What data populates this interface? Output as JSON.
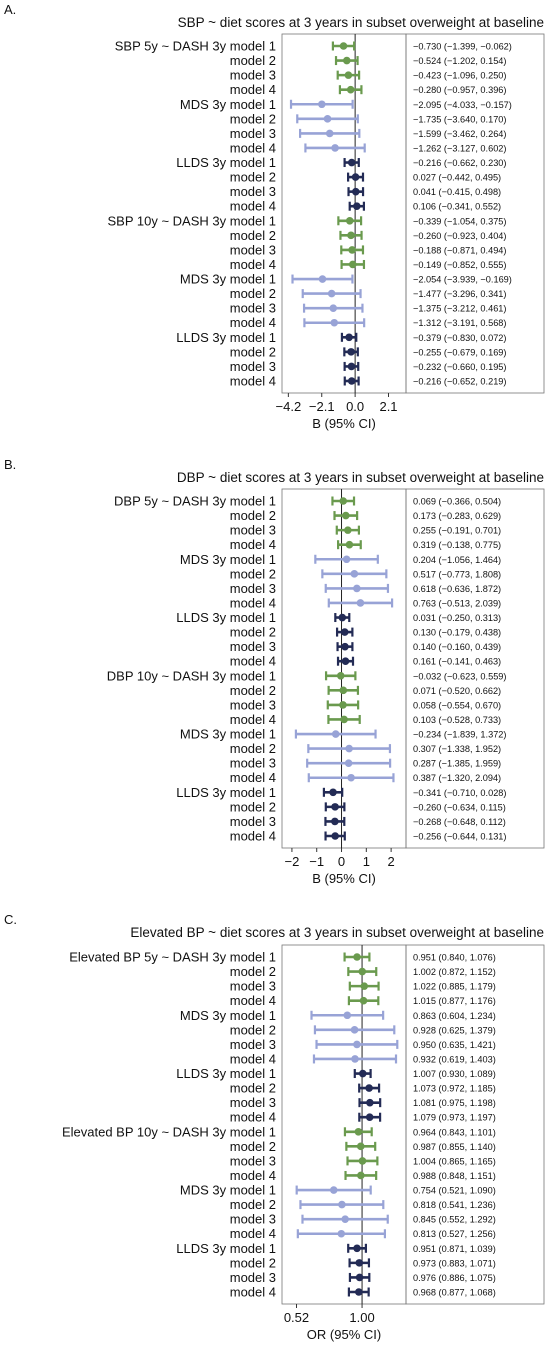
{
  "chart_data": [
    {
      "type": "forest",
      "panel_letter": "A.",
      "title": "SBP ~ diet scores at 3 years in subset overweight at baseline",
      "xlabel": "B (95% CI)",
      "xlim": [
        -4.6,
        3.2
      ],
      "xticks": [
        -4.2,
        -2.1,
        0.0,
        2.1
      ],
      "xtick_labels": [
        "−4.2",
        "−2.1",
        "0.0",
        "2.1"
      ],
      "ref_line": 0,
      "log_scale": false,
      "rows": [
        {
          "label": "SBP 5y ~ DASH 3y model 1",
          "est": -0.73,
          "lo": -1.399,
          "hi": -0.062,
          "ci_text": "−0.730 (−1.399, −0.062)",
          "color": "#6a9a4e"
        },
        {
          "label": "model 2",
          "est": -0.524,
          "lo": -1.202,
          "hi": 0.154,
          "ci_text": "−0.524 (−1.202,  0.154)",
          "color": "#6a9a4e"
        },
        {
          "label": "model 3",
          "est": -0.423,
          "lo": -1.096,
          "hi": 0.25,
          "ci_text": "−0.423 (−1.096,  0.250)",
          "color": "#6a9a4e"
        },
        {
          "label": "model 4",
          "est": -0.28,
          "lo": -0.957,
          "hi": 0.396,
          "ci_text": "−0.280 (−0.957,  0.396)",
          "color": "#6a9a4e"
        },
        {
          "label": "MDS 3y model 1",
          "est": -2.095,
          "lo": -4.033,
          "hi": -0.157,
          "ci_text": "−2.095 (−4.033, −0.157)",
          "color": "#98a3d6"
        },
        {
          "label": "model 2",
          "est": -1.735,
          "lo": -3.64,
          "hi": 0.17,
          "ci_text": "−1.735 (−3.640,  0.170)",
          "color": "#98a3d6"
        },
        {
          "label": "model 3",
          "est": -1.599,
          "lo": -3.462,
          "hi": 0.264,
          "ci_text": "−1.599 (−3.462,  0.264)",
          "color": "#98a3d6"
        },
        {
          "label": "model 4",
          "est": -1.262,
          "lo": -3.127,
          "hi": 0.602,
          "ci_text": "−1.262 (−3.127,  0.602)",
          "color": "#98a3d6"
        },
        {
          "label": "LLDS 3y model 1",
          "est": -0.216,
          "lo": -0.662,
          "hi": 0.23,
          "ci_text": "−0.216 (−0.662,  0.230)",
          "color": "#232b55"
        },
        {
          "label": "model 2",
          "est": 0.027,
          "lo": -0.442,
          "hi": 0.495,
          "ci_text": "0.027 (−0.442,  0.495)",
          "color": "#232b55"
        },
        {
          "label": "model 3",
          "est": 0.041,
          "lo": -0.415,
          "hi": 0.498,
          "ci_text": "0.041 (−0.415,  0.498)",
          "color": "#232b55"
        },
        {
          "label": "model 4",
          "est": 0.106,
          "lo": -0.341,
          "hi": 0.552,
          "ci_text": "0.106 (−0.341,  0.552)",
          "color": "#232b55"
        },
        {
          "label": "SBP 10y ~ DASH 3y model 1",
          "est": -0.339,
          "lo": -1.054,
          "hi": 0.375,
          "ci_text": "−0.339 (−1.054,  0.375)",
          "color": "#6a9a4e"
        },
        {
          "label": "model 2",
          "est": -0.26,
          "lo": -0.923,
          "hi": 0.404,
          "ci_text": "−0.260 (−0.923,  0.404)",
          "color": "#6a9a4e"
        },
        {
          "label": "model 3",
          "est": -0.188,
          "lo": -0.871,
          "hi": 0.494,
          "ci_text": "−0.188 (−0.871,  0.494)",
          "color": "#6a9a4e"
        },
        {
          "label": "model 4",
          "est": -0.149,
          "lo": -0.852,
          "hi": 0.555,
          "ci_text": "−0.149 (−0.852,  0.555)",
          "color": "#6a9a4e"
        },
        {
          "label": "MDS 3y model 1",
          "est": -2.054,
          "lo": -3.939,
          "hi": -0.169,
          "ci_text": "−2.054 (−3.939, −0.169)",
          "color": "#98a3d6"
        },
        {
          "label": "model 2",
          "est": -1.477,
          "lo": -3.296,
          "hi": 0.341,
          "ci_text": "−1.477 (−3.296,  0.341)",
          "color": "#98a3d6"
        },
        {
          "label": "model 3",
          "est": -1.375,
          "lo": -3.212,
          "hi": 0.461,
          "ci_text": "−1.375 (−3.212,  0.461)",
          "color": "#98a3d6"
        },
        {
          "label": "model 4",
          "est": -1.312,
          "lo": -3.191,
          "hi": 0.568,
          "ci_text": "−1.312 (−3.191,  0.568)",
          "color": "#98a3d6"
        },
        {
          "label": "LLDS 3y model 1",
          "est": -0.379,
          "lo": -0.83,
          "hi": 0.072,
          "ci_text": "−0.379 (−0.830,  0.072)",
          "color": "#232b55"
        },
        {
          "label": "model 2",
          "est": -0.255,
          "lo": -0.679,
          "hi": 0.169,
          "ci_text": "−0.255 (−0.679,  0.169)",
          "color": "#232b55"
        },
        {
          "label": "model 3",
          "est": -0.232,
          "lo": -0.66,
          "hi": 0.195,
          "ci_text": "−0.232 (−0.660,  0.195)",
          "color": "#232b55"
        },
        {
          "label": "model 4",
          "est": -0.216,
          "lo": -0.652,
          "hi": 0.219,
          "ci_text": "−0.216 (−0.652,  0.219)",
          "color": "#232b55"
        }
      ]
    },
    {
      "type": "forest",
      "panel_letter": "B.",
      "title": "DBP ~ diet scores at 3 years in subset overweight at baseline",
      "xlabel": "B (95% CI)",
      "xlim": [
        -2.4,
        2.6
      ],
      "xticks": [
        -2,
        -1,
        0,
        1,
        2
      ],
      "xtick_labels": [
        "−2",
        "−1",
        "0",
        "1",
        "2"
      ],
      "ref_line": 0,
      "log_scale": false,
      "rows": [
        {
          "label": "DBP 5y ~ DASH 3y model 1",
          "est": 0.069,
          "lo": -0.366,
          "hi": 0.504,
          "ci_text": "0.069 (−0.366, 0.504)",
          "color": "#6a9a4e"
        },
        {
          "label": "model 2",
          "est": 0.173,
          "lo": -0.283,
          "hi": 0.629,
          "ci_text": "0.173 (−0.283, 0.629)",
          "color": "#6a9a4e"
        },
        {
          "label": "model 3",
          "est": 0.255,
          "lo": -0.191,
          "hi": 0.701,
          "ci_text": "0.255 (−0.191, 0.701)",
          "color": "#6a9a4e"
        },
        {
          "label": "model 4",
          "est": 0.319,
          "lo": -0.138,
          "hi": 0.775,
          "ci_text": "0.319 (−0.138, 0.775)",
          "color": "#6a9a4e"
        },
        {
          "label": "MDS 3y model 1",
          "est": 0.204,
          "lo": -1.056,
          "hi": 1.464,
          "ci_text": "0.204 (−1.056, 1.464)",
          "color": "#98a3d6"
        },
        {
          "label": "model 2",
          "est": 0.517,
          "lo": -0.773,
          "hi": 1.808,
          "ci_text": "0.517 (−0.773, 1.808)",
          "color": "#98a3d6"
        },
        {
          "label": "model 3",
          "est": 0.618,
          "lo": -0.636,
          "hi": 1.872,
          "ci_text": "0.618 (−0.636, 1.872)",
          "color": "#98a3d6"
        },
        {
          "label": "model 4",
          "est": 0.763,
          "lo": -0.513,
          "hi": 2.039,
          "ci_text": "0.763 (−0.513, 2.039)",
          "color": "#98a3d6"
        },
        {
          "label": "LLDS 3y model 1",
          "est": 0.031,
          "lo": -0.25,
          "hi": 0.313,
          "ci_text": "0.031 (−0.250, 0.313)",
          "color": "#232b55"
        },
        {
          "label": "model 2",
          "est": 0.13,
          "lo": -0.179,
          "hi": 0.438,
          "ci_text": "0.130 (−0.179, 0.438)",
          "color": "#232b55"
        },
        {
          "label": "model 3",
          "est": 0.14,
          "lo": -0.16,
          "hi": 0.439,
          "ci_text": "0.140 (−0.160, 0.439)",
          "color": "#232b55"
        },
        {
          "label": "model 4",
          "est": 0.161,
          "lo": -0.141,
          "hi": 0.463,
          "ci_text": "0.161 (−0.141, 0.463)",
          "color": "#232b55"
        },
        {
          "label": "DBP 10y ~ DASH 3y model 1",
          "est": -0.032,
          "lo": -0.623,
          "hi": 0.559,
          "ci_text": "−0.032 (−0.623, 0.559)",
          "color": "#6a9a4e"
        },
        {
          "label": "model 2",
          "est": 0.071,
          "lo": -0.52,
          "hi": 0.662,
          "ci_text": "0.071 (−0.520, 0.662)",
          "color": "#6a9a4e"
        },
        {
          "label": "model 3",
          "est": 0.058,
          "lo": -0.554,
          "hi": 0.67,
          "ci_text": "0.058 (−0.554, 0.670)",
          "color": "#6a9a4e"
        },
        {
          "label": "model 4",
          "est": 0.103,
          "lo": -0.528,
          "hi": 0.733,
          "ci_text": "0.103 (−0.528, 0.733)",
          "color": "#6a9a4e"
        },
        {
          "label": "MDS 3y model 1",
          "est": -0.234,
          "lo": -1.839,
          "hi": 1.372,
          "ci_text": "−0.234 (−1.839, 1.372)",
          "color": "#98a3d6"
        },
        {
          "label": "model 2",
          "est": 0.307,
          "lo": -1.338,
          "hi": 1.952,
          "ci_text": "0.307 (−1.338, 1.952)",
          "color": "#98a3d6"
        },
        {
          "label": "model 3",
          "est": 0.287,
          "lo": -1.385,
          "hi": 1.959,
          "ci_text": "0.287 (−1.385, 1.959)",
          "color": "#98a3d6"
        },
        {
          "label": "model 4",
          "est": 0.387,
          "lo": -1.32,
          "hi": 2.094,
          "ci_text": "0.387 (−1.320, 2.094)",
          "color": "#98a3d6"
        },
        {
          "label": "LLDS 3y model 1",
          "est": -0.341,
          "lo": -0.71,
          "hi": 0.028,
          "ci_text": "−0.341 (−0.710, 0.028)",
          "color": "#232b55"
        },
        {
          "label": "model 2",
          "est": -0.26,
          "lo": -0.634,
          "hi": 0.115,
          "ci_text": "−0.260 (−0.634, 0.115)",
          "color": "#232b55"
        },
        {
          "label": "model 3",
          "est": -0.268,
          "lo": -0.648,
          "hi": 0.112,
          "ci_text": "−0.268 (−0.648, 0.112)",
          "color": "#232b55"
        },
        {
          "label": "model 4",
          "est": -0.256,
          "lo": -0.644,
          "hi": 0.131,
          "ci_text": "−0.256 (−0.644, 0.131)",
          "color": "#232b55"
        }
      ]
    },
    {
      "type": "forest",
      "panel_letter": "C.",
      "title": "Elevated BP ~ diet scores at 3 years in subset overweight at baseline",
      "xlabel": "OR (95% CI)",
      "xlim": [
        0.45,
        1.55
      ],
      "xticks": [
        0.52,
        1.0
      ],
      "xtick_labels": [
        "0.52",
        "1.00"
      ],
      "ref_line": 1,
      "log_scale": true,
      "rows": [
        {
          "label": "Elevated BP 5y ~ DASH 3y model 1",
          "est": 0.951,
          "lo": 0.84,
          "hi": 1.076,
          "ci_text": "0.951 (0.840, 1.076)",
          "color": "#6a9a4e"
        },
        {
          "label": "model 2",
          "est": 1.002,
          "lo": 0.872,
          "hi": 1.152,
          "ci_text": "1.002 (0.872, 1.152)",
          "color": "#6a9a4e"
        },
        {
          "label": "model 3",
          "est": 1.022,
          "lo": 0.885,
          "hi": 1.179,
          "ci_text": "1.022 (0.885, 1.179)",
          "color": "#6a9a4e"
        },
        {
          "label": "model 4",
          "est": 1.015,
          "lo": 0.877,
          "hi": 1.176,
          "ci_text": "1.015 (0.877, 1.176)",
          "color": "#6a9a4e"
        },
        {
          "label": "MDS 3y model 1",
          "est": 0.863,
          "lo": 0.604,
          "hi": 1.234,
          "ci_text": "0.863 (0.604, 1.234)",
          "color": "#98a3d6"
        },
        {
          "label": "model 2",
          "est": 0.928,
          "lo": 0.625,
          "hi": 1.379,
          "ci_text": "0.928 (0.625, 1.379)",
          "color": "#98a3d6"
        },
        {
          "label": "model 3",
          "est": 0.95,
          "lo": 0.635,
          "hi": 1.421,
          "ci_text": "0.950 (0.635, 1.421)",
          "color": "#98a3d6"
        },
        {
          "label": "model 4",
          "est": 0.932,
          "lo": 0.619,
          "hi": 1.403,
          "ci_text": "0.932 (0.619, 1.403)",
          "color": "#98a3d6"
        },
        {
          "label": "LLDS 3y model 1",
          "est": 1.007,
          "lo": 0.93,
          "hi": 1.089,
          "ci_text": "1.007 (0.930, 1.089)",
          "color": "#232b55"
        },
        {
          "label": "model 2",
          "est": 1.073,
          "lo": 0.972,
          "hi": 1.185,
          "ci_text": "1.073 (0.972, 1.185)",
          "color": "#232b55"
        },
        {
          "label": "model 3",
          "est": 1.081,
          "lo": 0.975,
          "hi": 1.198,
          "ci_text": "1.081 (0.975, 1.198)",
          "color": "#232b55"
        },
        {
          "label": "model 4",
          "est": 1.079,
          "lo": 0.973,
          "hi": 1.197,
          "ci_text": "1.079 (0.973, 1.197)",
          "color": "#232b55"
        },
        {
          "label": "Elevated BP 10y ~ DASH 3y model 1",
          "est": 0.964,
          "lo": 0.843,
          "hi": 1.101,
          "ci_text": "0.964 (0.843, 1.101)",
          "color": "#6a9a4e"
        },
        {
          "label": "model 2",
          "est": 0.987,
          "lo": 0.855,
          "hi": 1.14,
          "ci_text": "0.987 (0.855, 1.140)",
          "color": "#6a9a4e"
        },
        {
          "label": "model 3",
          "est": 1.004,
          "lo": 0.865,
          "hi": 1.165,
          "ci_text": "1.004 (0.865, 1.165)",
          "color": "#6a9a4e"
        },
        {
          "label": "model 4",
          "est": 0.988,
          "lo": 0.848,
          "hi": 1.151,
          "ci_text": "0.988 (0.848, 1.151)",
          "color": "#6a9a4e"
        },
        {
          "label": "MDS 3y model 1",
          "est": 0.754,
          "lo": 0.521,
          "hi": 1.09,
          "ci_text": "0.754 (0.521, 1.090)",
          "color": "#98a3d6"
        },
        {
          "label": "model 2",
          "est": 0.818,
          "lo": 0.541,
          "hi": 1.236,
          "ci_text": "0.818 (0.541, 1.236)",
          "color": "#98a3d6"
        },
        {
          "label": "model 3",
          "est": 0.845,
          "lo": 0.552,
          "hi": 1.292,
          "ci_text": "0.845 (0.552, 1.292)",
          "color": "#98a3d6"
        },
        {
          "label": "model 4",
          "est": 0.813,
          "lo": 0.527,
          "hi": 1.256,
          "ci_text": "0.813 (0.527, 1.256)",
          "color": "#98a3d6"
        },
        {
          "label": "LLDS 3y model 1",
          "est": 0.951,
          "lo": 0.871,
          "hi": 1.039,
          "ci_text": "0.951 (0.871, 1.039)",
          "color": "#232b55"
        },
        {
          "label": "model 2",
          "est": 0.973,
          "lo": 0.883,
          "hi": 1.071,
          "ci_text": "0.973 (0.883, 1.071)",
          "color": "#232b55"
        },
        {
          "label": "model 3",
          "est": 0.976,
          "lo": 0.886,
          "hi": 1.075,
          "ci_text": "0.976 (0.886, 1.075)",
          "color": "#232b55"
        },
        {
          "label": "model 4",
          "est": 0.968,
          "lo": 0.877,
          "hi": 1.068,
          "ci_text": "0.968 (0.877, 1.068)",
          "color": "#232b55"
        }
      ]
    }
  ]
}
